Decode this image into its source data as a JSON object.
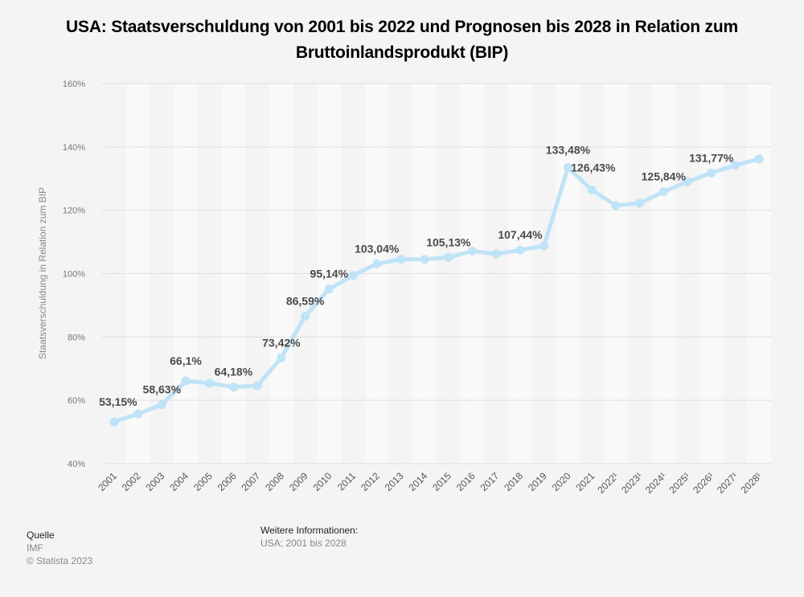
{
  "title": "USA: Staatsverschuldung von 2001 bis 2022 und Prognosen bis 2028 in Relation zum Bruttoinlandsprodukt (BIP)",
  "footer": {
    "source_heading": "Quelle",
    "source": "IMF",
    "copyright": "© Statista 2023",
    "info_heading": "Weitere Informationen:",
    "info": "USA; 2001 bis 2028"
  },
  "colors": {
    "line": "#bfe3f7",
    "grid": "#c8c8c8",
    "band_light": "#f9f9f9",
    "band_dark": "#f4f4f4",
    "label": "#4a4a4a",
    "tick": "#777777"
  },
  "chart_data": {
    "type": "line",
    "title": "USA: Staatsverschuldung von 2001 bis 2022 und Prognosen bis 2028 in Relation zum Bruttoinlandsprodukt (BIP)",
    "xlabel": "",
    "ylabel": "Staatsverschuldung in Relation zum BIP",
    "ylim": [
      40,
      160
    ],
    "yticks": [
      40,
      60,
      80,
      100,
      120,
      140,
      160
    ],
    "ytick_labels": [
      "40%",
      "60%",
      "80%",
      "100%",
      "120%",
      "140%",
      "160%"
    ],
    "grid": true,
    "categories": [
      "2001",
      "2002",
      "2003",
      "2004",
      "2005",
      "2006",
      "2007",
      "2008",
      "2009",
      "2010",
      "2011",
      "2012",
      "2013",
      "2014",
      "2015",
      "2016",
      "2017",
      "2018",
      "2019",
      "2020",
      "2021",
      "2022¹",
      "2023¹",
      "2024¹",
      "2025¹",
      "2026¹",
      "2027¹",
      "2028¹"
    ],
    "series": [
      {
        "name": "Staatsverschuldung in Relation zum BIP",
        "values": [
          53.15,
          55.7,
          58.63,
          66.1,
          65.4,
          64.18,
          64.6,
          73.42,
          86.59,
          95.14,
          99.4,
          103.04,
          104.5,
          104.5,
          105.13,
          107.1,
          106.2,
          107.44,
          108.8,
          133.48,
          126.43,
          121.5,
          122.2,
          125.84,
          129.0,
          131.77,
          134.2,
          136.2
        ]
      }
    ],
    "data_labels": [
      {
        "index": 0,
        "text": "53,15%"
      },
      {
        "index": 2,
        "text": "58,63%"
      },
      {
        "index": 3,
        "text": "66,1%"
      },
      {
        "index": 5,
        "text": "64,18%"
      },
      {
        "index": 7,
        "text": "73,42%"
      },
      {
        "index": 8,
        "text": "86,59%"
      },
      {
        "index": 9,
        "text": "95,14%"
      },
      {
        "index": 11,
        "text": "103,04%"
      },
      {
        "index": 14,
        "text": "105,13%"
      },
      {
        "index": 17,
        "text": "107,44%"
      },
      {
        "index": 19,
        "text": "133,48%"
      },
      {
        "index": 20,
        "text": "126,43%"
      },
      {
        "index": 23,
        "text": "125,84%"
      },
      {
        "index": 25,
        "text": "131,77%"
      }
    ]
  }
}
